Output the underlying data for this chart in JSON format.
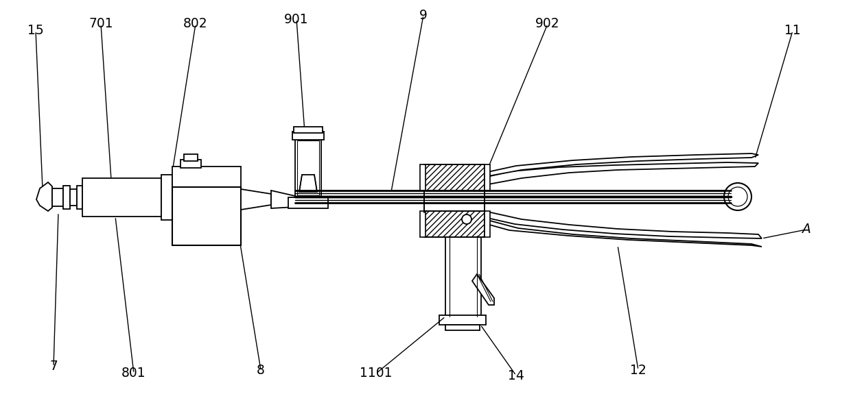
{
  "bg_color": "#ffffff",
  "line_color": "#000000",
  "fig_width": 12.4,
  "fig_height": 5.75,
  "dpi": 100
}
